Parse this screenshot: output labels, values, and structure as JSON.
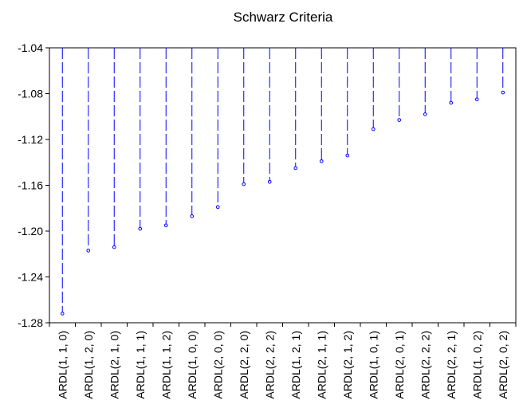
{
  "chart_data": {
    "type": "scatter",
    "title": "Schwarz Criteria",
    "xlabel": "",
    "ylabel": "",
    "ylim": [
      -1.28,
      -1.04
    ],
    "yticks": [
      -1.04,
      -1.08,
      -1.12,
      -1.16,
      -1.2,
      -1.24,
      -1.28
    ],
    "ytick_labels": [
      "-1.04",
      "-1.08",
      "-1.12",
      "-1.16",
      "-1.20",
      "-1.24",
      "-1.28"
    ],
    "categories": [
      "ARDL(1, 1, 0)",
      "ARDL(1, 2, 0)",
      "ARDL(2, 1, 0)",
      "ARDL(1, 1, 1)",
      "ARDL(1, 1, 2)",
      "ARDL(1, 0, 0)",
      "ARDL(2, 0, 0)",
      "ARDL(2, 2, 0)",
      "ARDL(2, 2, 2)",
      "ARDL(1, 2, 1)",
      "ARDL(2, 1, 1)",
      "ARDL(2, 1, 2)",
      "ARDL(1, 0, 1)",
      "ARDL(2, 0, 1)",
      "ARDL(2, 2, 2)",
      "ARDL(2, 2, 1)",
      "ARDL(1, 0, 2)",
      "ARDL(2, 0, 2)"
    ],
    "values": [
      -1.272,
      -1.217,
      -1.214,
      -1.198,
      -1.195,
      -1.187,
      -1.179,
      -1.159,
      -1.157,
      -1.145,
      -1.139,
      -1.134,
      -1.111,
      -1.103,
      -1.098,
      -1.088,
      -1.085,
      -1.079
    ],
    "style": "dropline-from-top",
    "color": "#0000ff",
    "grid": false,
    "legend": "none"
  }
}
